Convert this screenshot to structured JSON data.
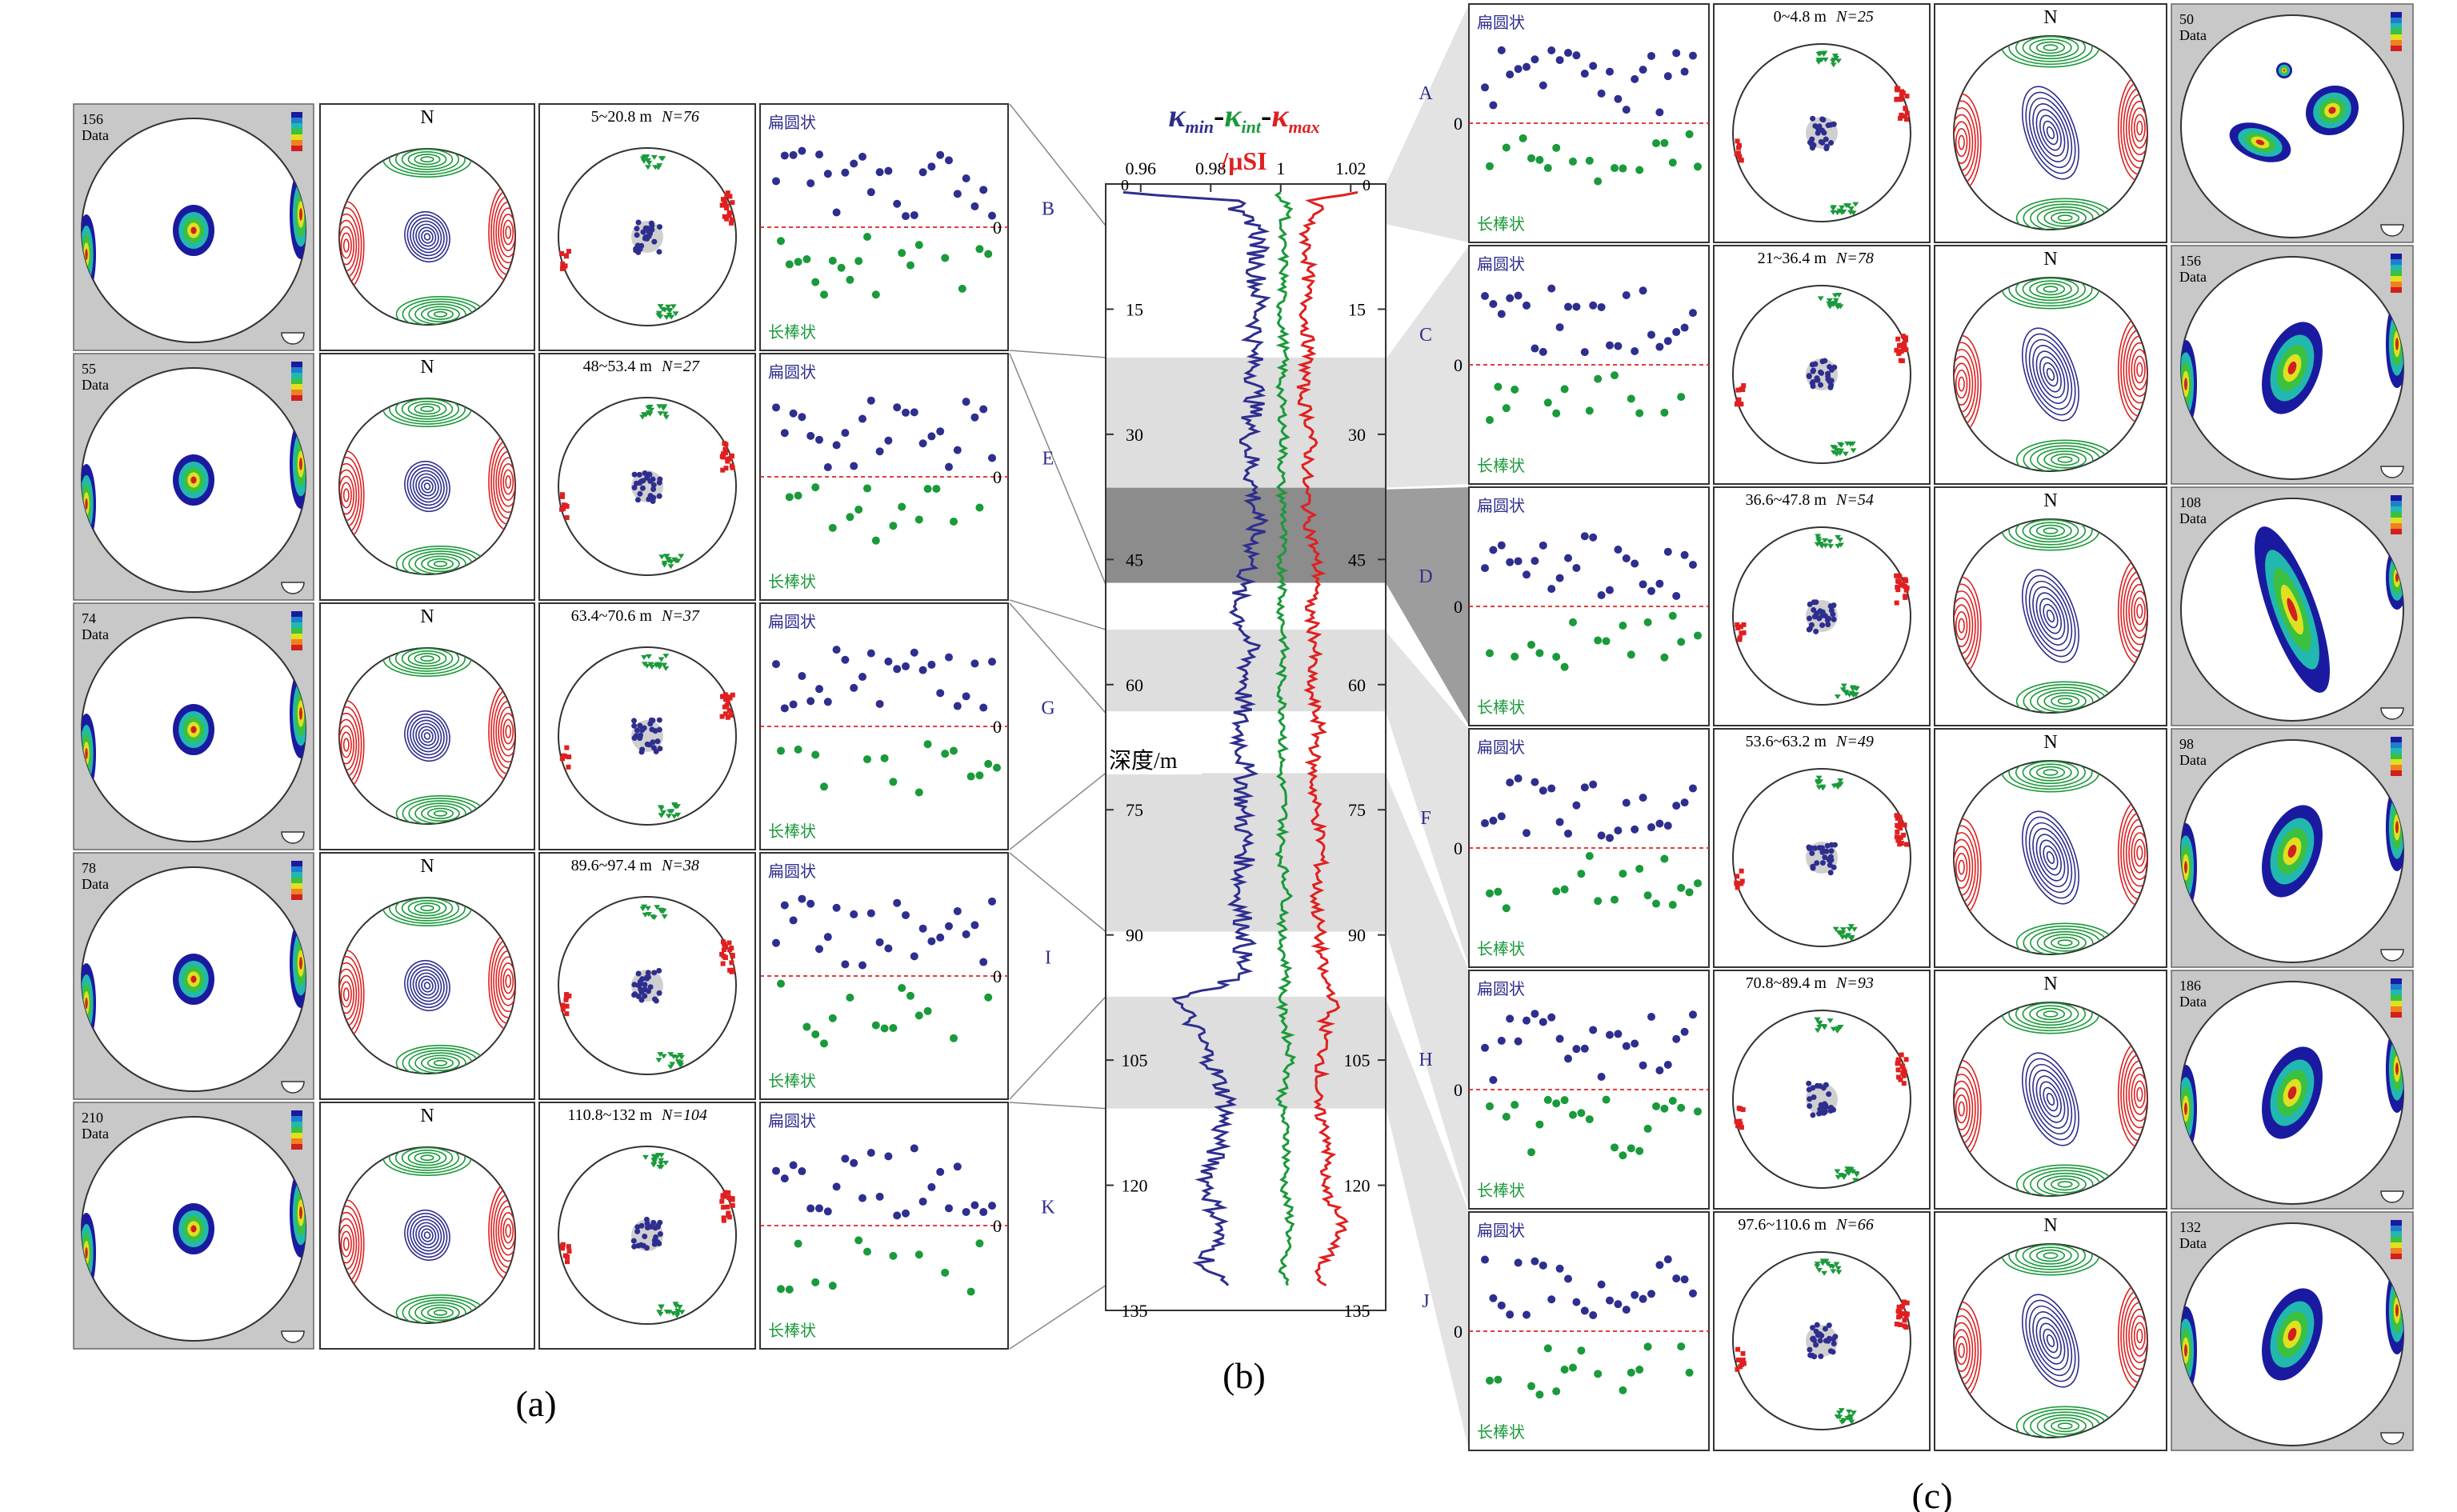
{
  "colors": {
    "kmin": "#2e2e8f",
    "kint": "#1a9a3a",
    "kmax": "#e02020",
    "oblate": "#2e2e8f",
    "prolate": "#1a9a3a",
    "shade_light": "#dedede",
    "shade_dark": "#8c8c8c",
    "frame_gray": "#c8c8c8"
  },
  "panel_a": {
    "caption": "(a)",
    "ellipsoid_labels": {
      "oblate": "扁圆状",
      "prolate": "长棒状"
    },
    "rows": [
      {
        "letter": "B",
        "range": "5~20.8 m",
        "n_label": "N=76",
        "data_count": "156",
        "data_word": "Data"
      },
      {
        "letter": "E",
        "range": "48~53.4 m",
        "n_label": "N=27",
        "data_count": "55",
        "data_word": "Data"
      },
      {
        "letter": "G",
        "range": "63.4~70.6 m",
        "n_label": "N=37",
        "data_count": "74",
        "data_word": "Data"
      },
      {
        "letter": "I",
        "range": "89.6~97.4 m",
        "n_label": "N=38",
        "data_count": "78",
        "data_word": "Data"
      },
      {
        "letter": "K",
        "range": "110.8~132 m",
        "n_label": "N=104",
        "data_count": "210",
        "data_word": "Data"
      }
    ]
  },
  "panel_c": {
    "caption": "(c)",
    "ellipsoid_labels": {
      "oblate": "扁圆状",
      "prolate": "长棒状"
    },
    "rows": [
      {
        "letter": "A",
        "range": "0~4.8 m",
        "n_label": "N=25",
        "data_count": "50",
        "data_word": "Data"
      },
      {
        "letter": "C",
        "range": "21~36.4 m",
        "n_label": "N=78",
        "data_count": "156",
        "data_word": "Data"
      },
      {
        "letter": "D",
        "range": "36.6~47.8 m",
        "n_label": "N=54",
        "data_count": "108",
        "data_word": "Data"
      },
      {
        "letter": "F",
        "range": "53.6~63.2 m",
        "n_label": "N=49",
        "data_count": "98",
        "data_word": "Data"
      },
      {
        "letter": "H",
        "range": "70.8~89.4 m",
        "n_label": "N=93",
        "data_count": "186",
        "data_word": "Data"
      },
      {
        "letter": "J",
        "range": "97.6~110.6 m",
        "n_label": "N=66",
        "data_count": "132",
        "data_word": "Data"
      }
    ]
  },
  "chart_data": [
    {
      "type": "line",
      "panel_caption": "(b)",
      "x_axis_ticks": [
        "0.96",
        "0.98",
        "1",
        "1.02"
      ],
      "xlim": [
        0.95,
        1.03
      ],
      "depth_ticks": [
        "15",
        "30",
        "45",
        "60",
        "75",
        "90",
        "105",
        "120",
        "135"
      ],
      "depth_tick_zero": "0",
      "ylim": [
        0,
        135
      ],
      "y_reversed": true,
      "ylabel": "深度/m",
      "unit": "/μSI",
      "series_symbols": [
        {
          "symbol": "κ",
          "sub": "min",
          "color": "#2e2e8f"
        },
        {
          "symbol": "κ",
          "sub": "int",
          "color": "#1a9a3a"
        },
        {
          "symbol": "κ",
          "sub": "max",
          "color": "#e02020"
        }
      ],
      "shaded_zones": [
        {
          "from": 20.8,
          "to": 36.4,
          "shade": "light"
        },
        {
          "from": 36.4,
          "to": 47.8,
          "shade": "dark"
        },
        {
          "from": 53.4,
          "to": 63.2,
          "shade": "light"
        },
        {
          "from": 70.6,
          "to": 89.6,
          "shade": "light"
        },
        {
          "from": 97.4,
          "to": 110.8,
          "shade": "light"
        }
      ],
      "series": [
        {
          "name_symbol": "κmin",
          "depth": [
            1,
            2,
            3,
            5,
            10,
            15,
            20,
            25,
            30,
            36,
            40,
            45,
            48,
            50,
            55,
            60,
            65,
            70,
            75,
            80,
            85,
            90,
            95,
            98,
            100,
            105,
            110,
            115,
            120,
            125,
            130,
            132
          ],
          "values": [
            0.955,
            0.988,
            0.985,
            0.994,
            0.993,
            0.994,
            0.992,
            0.993,
            0.991,
            0.992,
            0.993,
            0.992,
            0.989,
            0.987,
            0.991,
            0.99,
            0.988,
            0.99,
            0.989,
            0.99,
            0.988,
            0.99,
            0.988,
            0.97,
            0.974,
            0.98,
            0.985,
            0.982,
            0.979,
            0.983,
            0.978,
            0.985
          ]
        },
        {
          "name_symbol": "κint",
          "depth": [
            1,
            2,
            3,
            5,
            10,
            15,
            20,
            25,
            30,
            36,
            40,
            45,
            48,
            50,
            55,
            60,
            65,
            70,
            75,
            80,
            85,
            90,
            95,
            98,
            100,
            105,
            110,
            115,
            120,
            125,
            130,
            132
          ],
          "values": [
            1.0,
            1.0,
            1.003,
            1.0,
            1.001,
            1.0,
            1.001,
            1.0,
            1.001,
            1.0,
            1.001,
            1.0,
            1.001,
            1.0,
            1.001,
            1.0,
            1.001,
            1.0,
            1.001,
            1.0,
            1.002,
            1.0,
            1.002,
            1.0,
            1.001,
            1.003,
            1.0,
            1.002,
            1.001,
            1.003,
            1.0,
            1.002
          ]
        },
        {
          "name_symbol": "κmax",
          "depth": [
            1,
            2,
            3,
            5,
            10,
            15,
            20,
            25,
            30,
            36,
            40,
            45,
            48,
            50,
            55,
            60,
            65,
            70,
            75,
            80,
            85,
            90,
            95,
            98,
            100,
            105,
            110,
            115,
            120,
            125,
            130,
            132
          ],
          "values": [
            1.022,
            1.008,
            1.012,
            1.007,
            1.008,
            1.007,
            1.008,
            1.006,
            1.009,
            1.007,
            1.008,
            1.01,
            1.011,
            1.008,
            1.01,
            1.008,
            1.011,
            1.009,
            1.01,
            1.012,
            1.01,
            1.011,
            1.012,
            1.016,
            1.013,
            1.012,
            1.01,
            1.014,
            1.012,
            1.018,
            1.011,
            1.013
          ]
        }
      ]
    }
  ]
}
